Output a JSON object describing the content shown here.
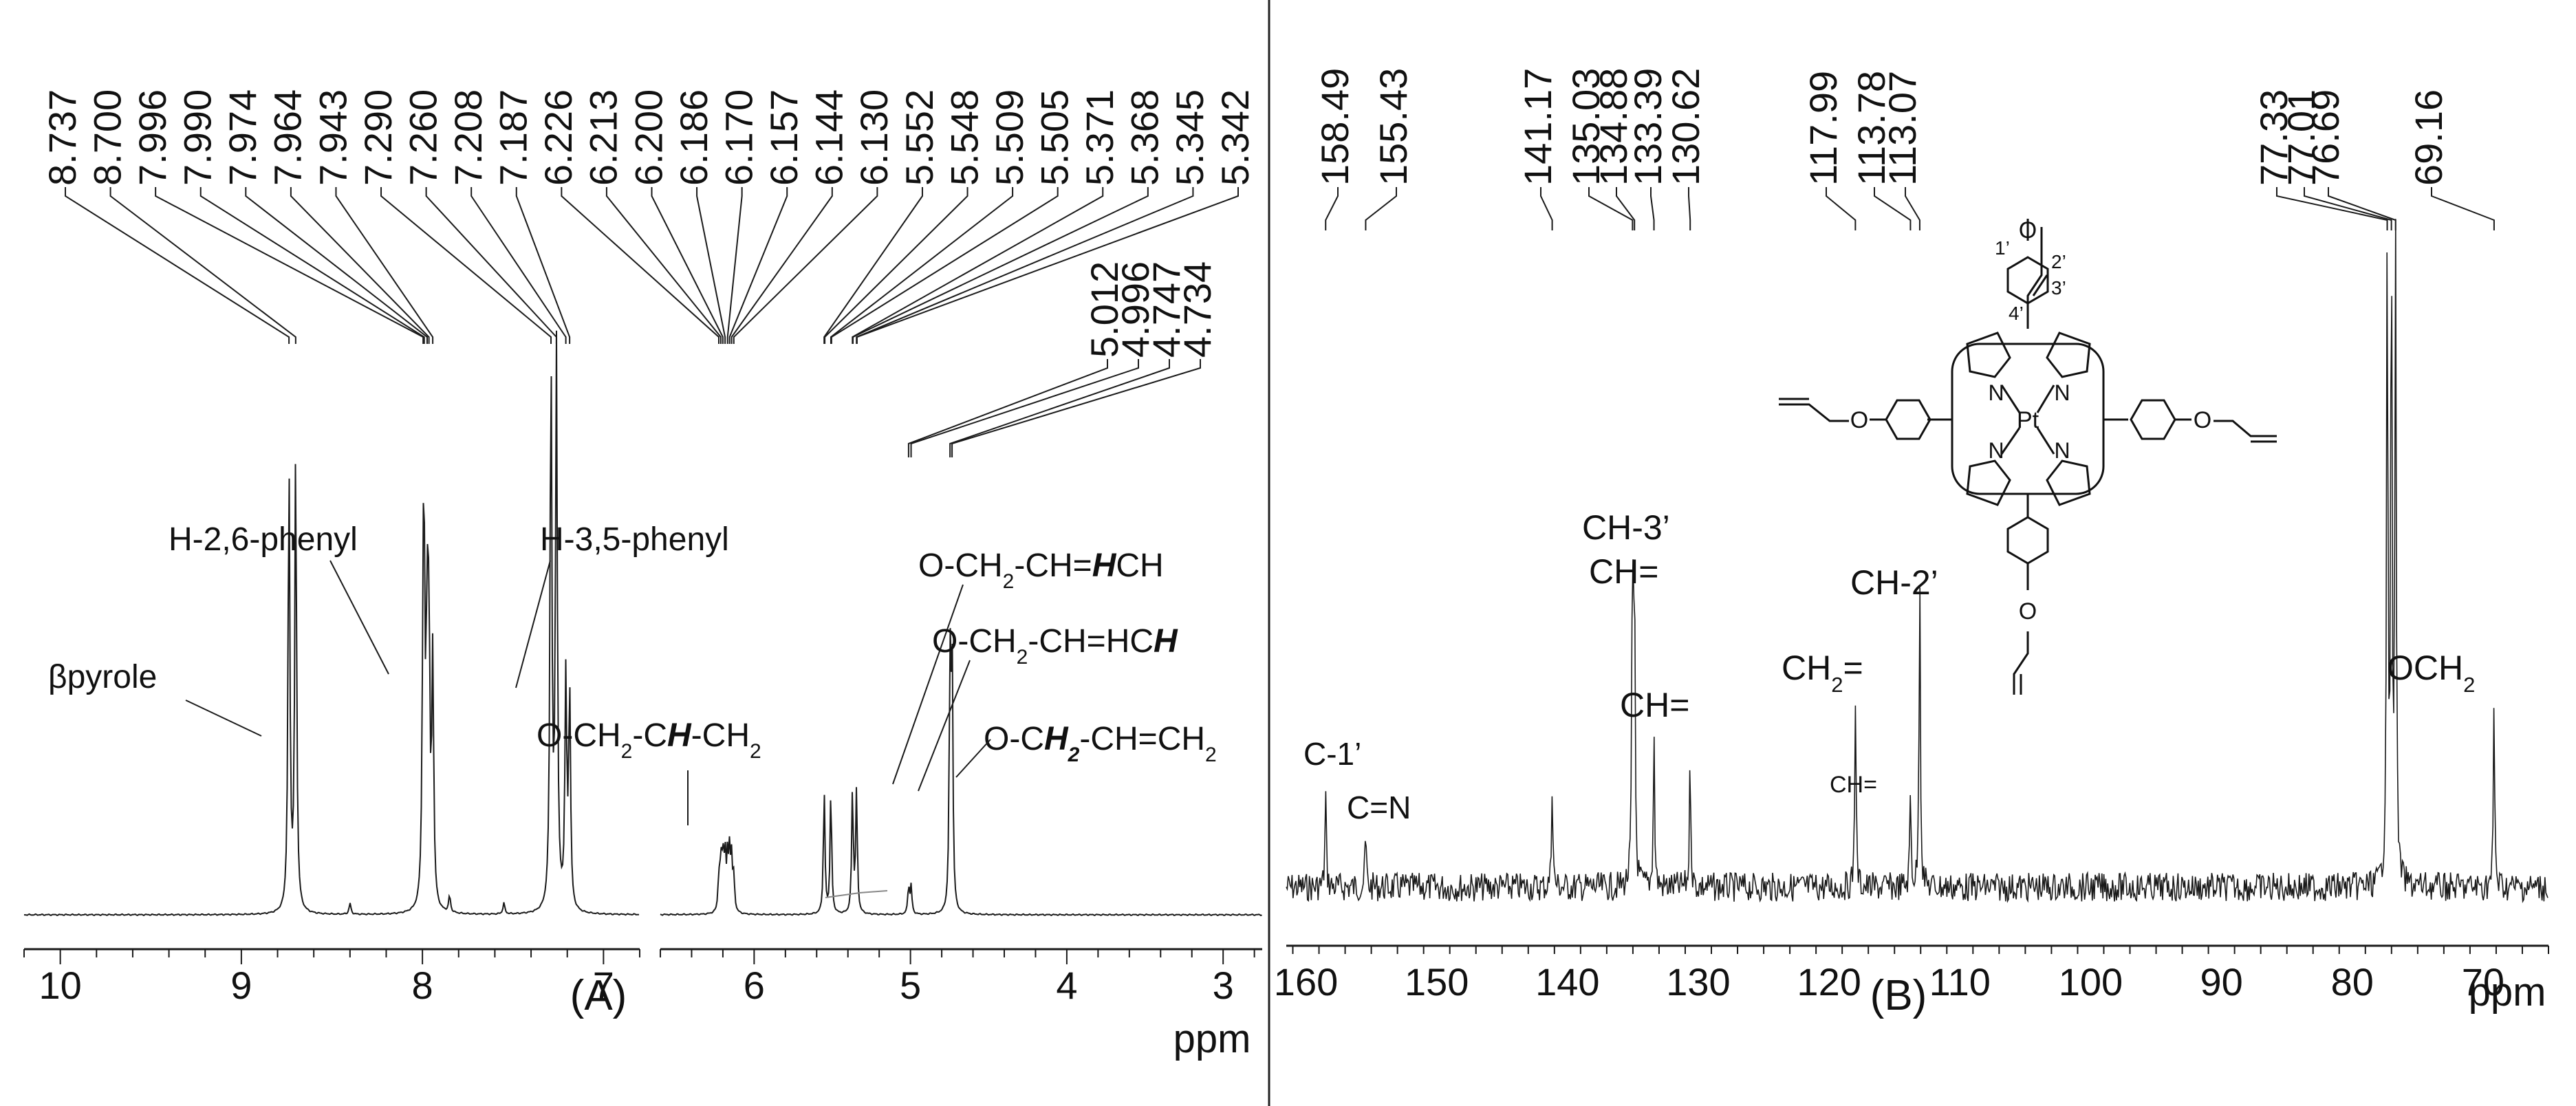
{
  "figure": {
    "line_color": "#1a1a1a",
    "background": "#ffffff",
    "panel_divider": true
  },
  "chart_data": [
    {
      "panel": "A",
      "type": "line",
      "title": "",
      "panel_label": "(A)",
      "xlabel": "ppm",
      "ylabel": "",
      "grid": false,
      "x_reversed": true,
      "axis_segments": [
        {
          "xlim": [
            10.2,
            6.8
          ],
          "ticks": [
            10,
            9,
            8,
            7
          ]
        },
        {
          "xlim": [
            6.6,
            2.75
          ],
          "ticks": [
            6,
            5,
            4,
            3
          ]
        }
      ],
      "peak_labels": [
        {
          "name": "8.737",
          "x": 8.737
        },
        {
          "name": "8.700",
          "x": 8.7
        },
        {
          "name": "7.996",
          "x": 7.996
        },
        {
          "name": "7.990",
          "x": 7.99
        },
        {
          "name": "7.974",
          "x": 7.974
        },
        {
          "name": "7.964",
          "x": 7.964
        },
        {
          "name": "7.943",
          "x": 7.943
        },
        {
          "name": "7.290",
          "x": 7.29
        },
        {
          "name": "7.260",
          "x": 7.26
        },
        {
          "name": "7.208",
          "x": 7.208
        },
        {
          "name": "7.187",
          "x": 7.187
        },
        {
          "name": "6.226",
          "x": 6.226
        },
        {
          "name": "6.213",
          "x": 6.213
        },
        {
          "name": "6.200",
          "x": 6.2
        },
        {
          "name": "6.186",
          "x": 6.186
        },
        {
          "name": "6.170",
          "x": 6.17
        },
        {
          "name": "6.157",
          "x": 6.157
        },
        {
          "name": "6.144",
          "x": 6.144
        },
        {
          "name": "6.130",
          "x": 6.13
        },
        {
          "name": "5.552",
          "x": 5.552
        },
        {
          "name": "5.548",
          "x": 5.548
        },
        {
          "name": "5.509",
          "x": 5.509
        },
        {
          "name": "5.505",
          "x": 5.505
        },
        {
          "name": "5.371",
          "x": 5.371
        },
        {
          "name": "5.368",
          "x": 5.368
        },
        {
          "name": "5.345",
          "x": 5.345
        },
        {
          "name": "5.342",
          "x": 5.342
        }
      ],
      "peak_labels_lower": [
        {
          "name": "5.012",
          "x": 5.012
        },
        {
          "name": "4.996",
          "x": 4.996
        },
        {
          "name": "4.747",
          "x": 4.747
        },
        {
          "name": "4.734",
          "x": 4.734
        }
      ],
      "peaks": [
        {
          "x": 8.737,
          "height": 0.8
        },
        {
          "x": 8.7,
          "height": 0.82
        },
        {
          "x": 7.996,
          "height": 0.43
        },
        {
          "x": 7.99,
          "height": 0.43
        },
        {
          "x": 7.974,
          "height": 0.46
        },
        {
          "x": 7.964,
          "height": 0.45
        },
        {
          "x": 7.943,
          "height": 0.44
        },
        {
          "x": 7.29,
          "height": 1.0
        },
        {
          "x": 7.26,
          "height": 1.0
        },
        {
          "x": 7.208,
          "height": 0.41
        },
        {
          "x": 7.187,
          "height": 0.39
        },
        {
          "x": 6.226,
          "height": 0.06
        },
        {
          "x": 6.213,
          "height": 0.09
        },
        {
          "x": 6.2,
          "height": 0.1
        },
        {
          "x": 6.186,
          "height": 0.1
        },
        {
          "x": 6.17,
          "height": 0.09
        },
        {
          "x": 6.157,
          "height": 0.1
        },
        {
          "x": 6.144,
          "height": 0.09
        },
        {
          "x": 6.13,
          "height": 0.06
        },
        {
          "x": 5.552,
          "height": 0.22
        },
        {
          "x": 5.509,
          "height": 0.22
        },
        {
          "x": 5.371,
          "height": 0.22
        },
        {
          "x": 5.345,
          "height": 0.22
        },
        {
          "x": 5.012,
          "height": 0.05
        },
        {
          "x": 4.996,
          "height": 0.05
        },
        {
          "x": 4.747,
          "height": 0.44
        },
        {
          "x": 4.734,
          "height": 0.46
        },
        {
          "x": 8.4,
          "height": 0.02
        },
        {
          "x": 7.85,
          "height": 0.03
        },
        {
          "x": 7.55,
          "height": 0.02
        }
      ],
      "annotations": [
        {
          "name": "beta-pyrole",
          "text": "βpyrole",
          "x": 8.72
        },
        {
          "name": "h26-phenyl",
          "text": "H-2,6-phenyl",
          "x": 7.97
        },
        {
          "name": "h35-phenyl",
          "text": "H-3,5-phenyl",
          "x": 7.2
        },
        {
          "name": "och2-chh-ch2",
          "parts": [
            {
              "t": "O-CH"
            },
            {
              "t": "2",
              "sub": true
            },
            {
              "t": "-C"
            },
            {
              "t": "H",
              "bi": true
            },
            {
              "t": "-CH"
            },
            {
              "t": "2",
              "sub": true
            }
          ],
          "x": 6.18
        },
        {
          "name": "och2-ch-hch",
          "parts": [
            {
              "t": "O-CH"
            },
            {
              "t": "2",
              "sub": true
            },
            {
              "t": "-CH="
            },
            {
              "t": "H",
              "bi": true
            },
            {
              "t": "CH"
            }
          ],
          "x": 5.53
        },
        {
          "name": "och2-ch-hch-h",
          "parts": [
            {
              "t": "O-CH"
            },
            {
              "t": "2",
              "sub": true
            },
            {
              "t": "-CH=HC"
            },
            {
              "t": "H",
              "bi": true
            }
          ],
          "x": 5.36
        },
        {
          "name": "och2-ch-ch2",
          "parts": [
            {
              "t": "O-C"
            },
            {
              "t": "H",
              "bi": true
            },
            {
              "t": "2",
              "sub": true,
              "bi": true
            },
            {
              "t": "-CH=CH"
            },
            {
              "t": "2",
              "sub": true
            }
          ],
          "x": 4.74
        }
      ]
    },
    {
      "panel": "B",
      "type": "line",
      "title": "",
      "panel_label": "(B)",
      "xlabel": "ppm",
      "ylabel": "",
      "grid": false,
      "x_reversed": true,
      "xlim": [
        161.5,
        65.0
      ],
      "ticks": [
        160,
        150,
        140,
        130,
        120,
        110,
        100,
        90,
        80,
        70
      ],
      "peak_labels": [
        {
          "name": "158.49",
          "x": 158.49
        },
        {
          "name": "155.43",
          "x": 155.43
        },
        {
          "name": "141.17",
          "x": 141.17
        },
        {
          "name": "135.03",
          "x": 135.03
        },
        {
          "name": "134.88",
          "x": 134.88
        },
        {
          "name": "133.39",
          "x": 133.39
        },
        {
          "name": "130.62",
          "x": 130.62
        },
        {
          "name": "117.99",
          "x": 117.99
        },
        {
          "name": "113.78",
          "x": 113.78
        },
        {
          "name": "113.07",
          "x": 113.07
        },
        {
          "name": "77.33",
          "x": 77.33
        },
        {
          "name": "77.01",
          "x": 77.01
        },
        {
          "name": "76.69",
          "x": 76.69
        },
        {
          "name": "69.16",
          "x": 69.16
        }
      ],
      "peaks": [
        {
          "x": 158.49,
          "height": 0.14
        },
        {
          "x": 155.43,
          "height": 0.08
        },
        {
          "x": 141.17,
          "height": 0.16
        },
        {
          "x": 135.03,
          "height": 0.5
        },
        {
          "x": 134.88,
          "height": 0.45
        },
        {
          "x": 133.39,
          "height": 0.23
        },
        {
          "x": 130.62,
          "height": 0.2
        },
        {
          "x": 117.99,
          "height": 0.29
        },
        {
          "x": 113.78,
          "height": 0.14
        },
        {
          "x": 113.07,
          "height": 0.48
        },
        {
          "x": 77.33,
          "height": 1.0
        },
        {
          "x": 77.01,
          "height": 1.0
        },
        {
          "x": 76.69,
          "height": 1.0
        },
        {
          "x": 69.16,
          "height": 0.27
        }
      ],
      "annotations": [
        {
          "name": "c1",
          "parts": [
            {
              "t": "C-1’"
            }
          ],
          "x": 158.49
        },
        {
          "name": "c-n",
          "parts": [
            {
              "t": "C=N"
            }
          ],
          "x": 155.43
        },
        {
          "name": "ch3",
          "parts": [
            {
              "t": "CH-3’"
            }
          ],
          "x": 135.0
        },
        {
          "name": "ch-eq-1",
          "parts": [
            {
              "t": "CH="
            }
          ],
          "x": 135.0
        },
        {
          "name": "ch-eq-2",
          "parts": [
            {
              "t": "CH="
            }
          ],
          "x": 132.0
        },
        {
          "name": "ch2-eq",
          "parts": [
            {
              "t": "CH"
            },
            {
              "t": "2",
              "sub": true
            },
            {
              "t": "="
            }
          ],
          "x": 118.0
        },
        {
          "name": "ch-eq-small",
          "parts": [
            {
              "t": "CH="
            }
          ],
          "x": 113.8
        },
        {
          "name": "ch2-prime",
          "parts": [
            {
              "t": "CH-2’"
            }
          ],
          "x": 113.07
        },
        {
          "name": "och2",
          "parts": [
            {
              "t": "OCH"
            },
            {
              "t": "2",
              "sub": true
            }
          ],
          "x": 69.16
        }
      ],
      "structure": {
        "metal": "Pt",
        "nitrogen": "N",
        "oxygen": "O",
        "position_labels": [
          "1’",
          "2’",
          "3’",
          "4’"
        ]
      }
    }
  ]
}
